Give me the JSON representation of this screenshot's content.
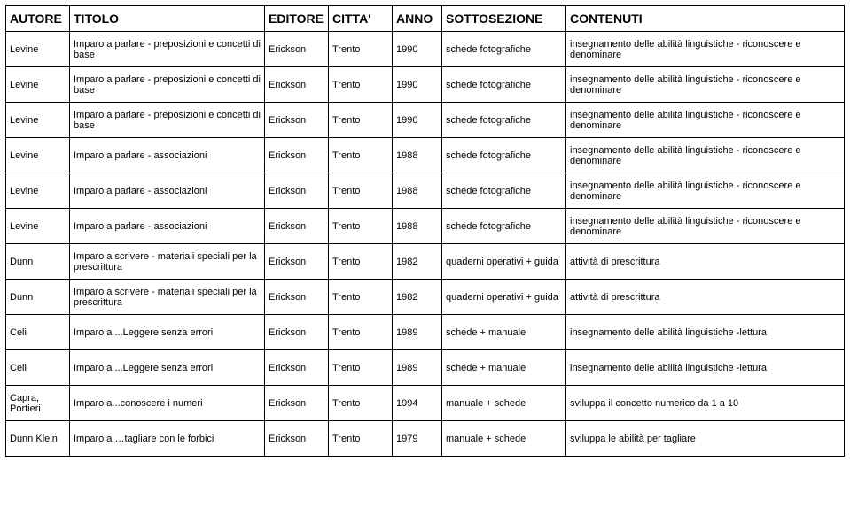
{
  "table": {
    "headers": [
      "AUTORE",
      "TITOLO",
      "EDITORE",
      "CITTA'",
      "ANNO",
      "SOTTOSEZIONE",
      "CONTENUTI"
    ],
    "rows": [
      {
        "autore": "Levine",
        "titolo": "Imparo a parlare - preposizioni e concetti di base",
        "editore": "Erickson",
        "citta": "Trento",
        "anno": "1990",
        "sottosezione": "schede fotografiche",
        "contenuti": "insegnamento delle abilità linguistiche - riconoscere e denominare"
      },
      {
        "autore": "Levine",
        "titolo": "Imparo a parlare - preposizioni e concetti di base",
        "editore": "Erickson",
        "citta": "Trento",
        "anno": "1990",
        "sottosezione": "schede fotografiche",
        "contenuti": "insegnamento delle abilità linguistiche - riconoscere e denominare"
      },
      {
        "autore": "Levine",
        "titolo": "Imparo a parlare - preposizioni e concetti di base",
        "editore": "Erickson",
        "citta": "Trento",
        "anno": "1990",
        "sottosezione": "schede fotografiche",
        "contenuti": "insegnamento delle abilità linguistiche - riconoscere e denominare"
      },
      {
        "autore": "Levine",
        "titolo": "Imparo a parlare - associazioni",
        "editore": "Erickson",
        "citta": "Trento",
        "anno": "1988",
        "sottosezione": "schede fotografiche",
        "contenuti": "insegnamento delle abilità linguistiche - riconoscere e denominare"
      },
      {
        "autore": "Levine",
        "titolo": "Imparo a parlare - associazioni",
        "editore": "Erickson",
        "citta": "Trento",
        "anno": "1988",
        "sottosezione": "schede fotografiche",
        "contenuti": "insegnamento delle abilità linguistiche - riconoscere e denominare"
      },
      {
        "autore": "Levine",
        "titolo": "Imparo a parlare - associazioni",
        "editore": "Erickson",
        "citta": "Trento",
        "anno": "1988",
        "sottosezione": "schede fotografiche",
        "contenuti": "insegnamento delle abilità linguistiche - riconoscere e denominare"
      },
      {
        "autore": "Dunn",
        "titolo": "Imparo a scrivere - materiali speciali per la prescrittura",
        "editore": "Erickson",
        "citta": "Trento",
        "anno": "1982",
        "sottosezione": "quaderni operativi + guida",
        "contenuti": "attività di prescrittura"
      },
      {
        "autore": "Dunn",
        "titolo": "Imparo a scrivere - materiali speciali per la prescrittura",
        "editore": "Erickson",
        "citta": "Trento",
        "anno": "1982",
        "sottosezione": "quaderni operativi + guida",
        "contenuti": "attività di prescrittura"
      },
      {
        "autore": "Celi",
        "titolo": "Imparo a ...Leggere senza errori",
        "editore": "Erickson",
        "citta": "Trento",
        "anno": "1989",
        "sottosezione": "schede + manuale",
        "contenuti": "insegnamento delle abilità linguistiche -lettura"
      },
      {
        "autore": "Celi",
        "titolo": "Imparo a ...Leggere senza errori",
        "editore": "Erickson",
        "citta": "Trento",
        "anno": "1989",
        "sottosezione": "schede + manuale",
        "contenuti": "insegnamento delle abilità linguistiche -lettura"
      },
      {
        "autore": "Capra, Portieri",
        "titolo": "Imparo a...conoscere i numeri",
        "editore": "Erickson",
        "citta": "Trento",
        "anno": "1994",
        "sottosezione": "manuale + schede",
        "contenuti": "sviluppa  il concetto numerico da 1 a 10"
      },
      {
        "autore": "Dunn Klein",
        "titolo": "Imparo a …tagliare con le forbici",
        "editore": "Erickson",
        "citta": "Trento",
        "anno": "1979",
        "sottosezione": "manuale + schede",
        "contenuti": "sviluppa le abilità per tagliare"
      }
    ]
  }
}
